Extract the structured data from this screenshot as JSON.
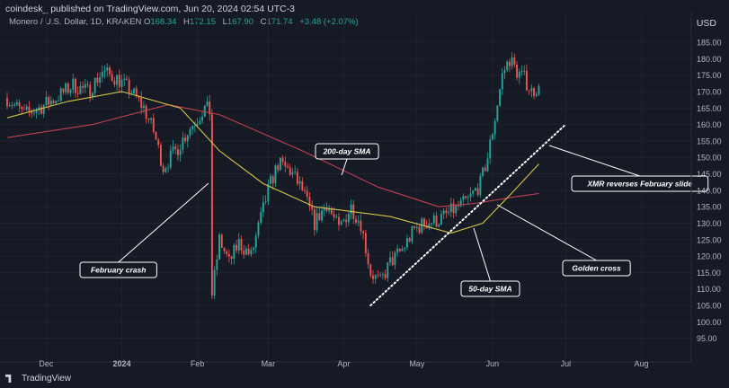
{
  "header": {
    "publisher": "coindesk_ published on TradingView.com, Jun 20, 2024 02:54 UTC-3",
    "currency": "USD"
  },
  "legend": {
    "symbol": "Monero / U.S. Dollar, 1D, KRAKEN",
    "o_key": "O",
    "o": "168.34",
    "h_key": "H",
    "h": "172.15",
    "l_key": "L",
    "l": "167.90",
    "c_key": "C",
    "c": "171.74",
    "chg": "+3.48 (+2.07%)"
  },
  "footer": {
    "brand": "TradingView"
  },
  "colors": {
    "up": "#26a69a",
    "down": "#ef5350",
    "sma50": "#d4c54a",
    "sma200": "#c2414f",
    "bg": "#161a25"
  },
  "chart_data": {
    "type": "candlestick",
    "title": "Monero / U.S. Dollar, 1D, KRAKEN",
    "y_ticks": [
      "95.00",
      "100.00",
      "105.00",
      "110.00",
      "115.00",
      "120.00",
      "125.00",
      "130.00",
      "135.00",
      "140.00",
      "145.00",
      "150.00",
      "155.00",
      "160.00",
      "165.00",
      "170.00",
      "175.00",
      "180.00",
      "185.00"
    ],
    "ylim": [
      90,
      188
    ],
    "x_ticks": [
      {
        "label": "Dec",
        "date": "2023-12-01"
      },
      {
        "label": "2024",
        "date": "2024-01-01"
      },
      {
        "label": "Feb",
        "date": "2024-02-01"
      },
      {
        "label": "Mar",
        "date": "2024-03-01"
      },
      {
        "label": "Apr",
        "date": "2024-04-01"
      },
      {
        "label": "May",
        "date": "2024-05-01"
      },
      {
        "label": "Jun",
        "date": "2024-06-01"
      },
      {
        "label": "Jul",
        "date": "2024-07-01"
      },
      {
        "label": "Aug",
        "date": "2024-08-01"
      }
    ],
    "xlim": [
      "2023-11-15",
      "2024-08-20"
    ],
    "price_path": [
      [
        "2023-11-15",
        168
      ],
      [
        "2023-11-22",
        163
      ],
      [
        "2023-11-28",
        165
      ],
      [
        "2023-12-05",
        168
      ],
      [
        "2023-12-12",
        172
      ],
      [
        "2023-12-18",
        170
      ],
      [
        "2023-12-24",
        176
      ],
      [
        "2023-12-30",
        174
      ],
      [
        "2024-01-05",
        170
      ],
      [
        "2024-01-10",
        165
      ],
      [
        "2024-01-14",
        158
      ],
      [
        "2024-01-18",
        147
      ],
      [
        "2024-01-24",
        153
      ],
      [
        "2024-01-28",
        158
      ],
      [
        "2024-02-01",
        162
      ],
      [
        "2024-02-04",
        165
      ],
      [
        "2024-02-06",
        164
      ],
      [
        "2024-02-07",
        108
      ],
      [
        "2024-02-10",
        125
      ],
      [
        "2024-02-14",
        118
      ],
      [
        "2024-02-18",
        124
      ],
      [
        "2024-02-23",
        120
      ],
      [
        "2024-03-01",
        140
      ],
      [
        "2024-03-05",
        148
      ],
      [
        "2024-03-10",
        146
      ],
      [
        "2024-03-15",
        140
      ],
      [
        "2024-03-20",
        130
      ],
      [
        "2024-03-25",
        136
      ],
      [
        "2024-03-30",
        128
      ],
      [
        "2024-04-04",
        135
      ],
      [
        "2024-04-08",
        130
      ],
      [
        "2024-04-12",
        115
      ],
      [
        "2024-04-16",
        112
      ],
      [
        "2024-04-20",
        118
      ],
      [
        "2024-04-25",
        122
      ],
      [
        "2024-04-30",
        128
      ],
      [
        "2024-05-04",
        130
      ],
      [
        "2024-05-10",
        131
      ],
      [
        "2024-05-16",
        134
      ],
      [
        "2024-05-22",
        137
      ],
      [
        "2024-05-27",
        142
      ],
      [
        "2024-05-30",
        150
      ],
      [
        "2024-06-02",
        162
      ],
      [
        "2024-06-05",
        175
      ],
      [
        "2024-06-08",
        180
      ],
      [
        "2024-06-11",
        176
      ],
      [
        "2024-06-14",
        174
      ],
      [
        "2024-06-17",
        170
      ],
      [
        "2024-06-20",
        171.74
      ]
    ],
    "series": [
      {
        "name": "200-day SMA",
        "color": "#c2414f",
        "points": [
          [
            "2023-11-15",
            156
          ],
          [
            "2023-12-20",
            160
          ],
          [
            "2024-01-20",
            166
          ],
          [
            "2024-02-10",
            163
          ],
          [
            "2024-03-15",
            152
          ],
          [
            "2024-04-15",
            141
          ],
          [
            "2024-05-10",
            135
          ],
          [
            "2024-05-25",
            136
          ],
          [
            "2024-06-10",
            138
          ],
          [
            "2024-06-20",
            139
          ]
        ]
      },
      {
        "name": "50-day SMA",
        "color": "#d4c54a",
        "points": [
          [
            "2023-11-15",
            162
          ],
          [
            "2023-12-10",
            167
          ],
          [
            "2024-01-01",
            170
          ],
          [
            "2024-01-25",
            165
          ],
          [
            "2024-02-10",
            152
          ],
          [
            "2024-02-28",
            142
          ],
          [
            "2024-03-20",
            135
          ],
          [
            "2024-04-20",
            132
          ],
          [
            "2024-05-15",
            127
          ],
          [
            "2024-05-28",
            130
          ],
          [
            "2024-06-10",
            140
          ],
          [
            "2024-06-20",
            148
          ]
        ]
      }
    ],
    "trendline": {
      "start": [
        "2024-04-12",
        105
      ],
      "end": [
        "2024-07-01",
        160
      ]
    },
    "annotations": [
      {
        "label": "February crash",
        "box": [
          89,
          292
        ],
        "target": [
          232,
          204
        ]
      },
      {
        "label": "200-day SMA",
        "box": [
          351,
          160
        ],
        "target": [
          380,
          195
        ]
      },
      {
        "label": "XMR reverses February slide",
        "box": [
          636,
          196
        ],
        "target": [
          611,
          162
        ]
      },
      {
        "label": "Golden cross",
        "box": [
          626,
          290
        ],
        "target": [
          553,
          228
        ]
      },
      {
        "label": "50-day SMA",
        "box": [
          513,
          313
        ],
        "target": [
          527,
          254
        ]
      }
    ]
  }
}
